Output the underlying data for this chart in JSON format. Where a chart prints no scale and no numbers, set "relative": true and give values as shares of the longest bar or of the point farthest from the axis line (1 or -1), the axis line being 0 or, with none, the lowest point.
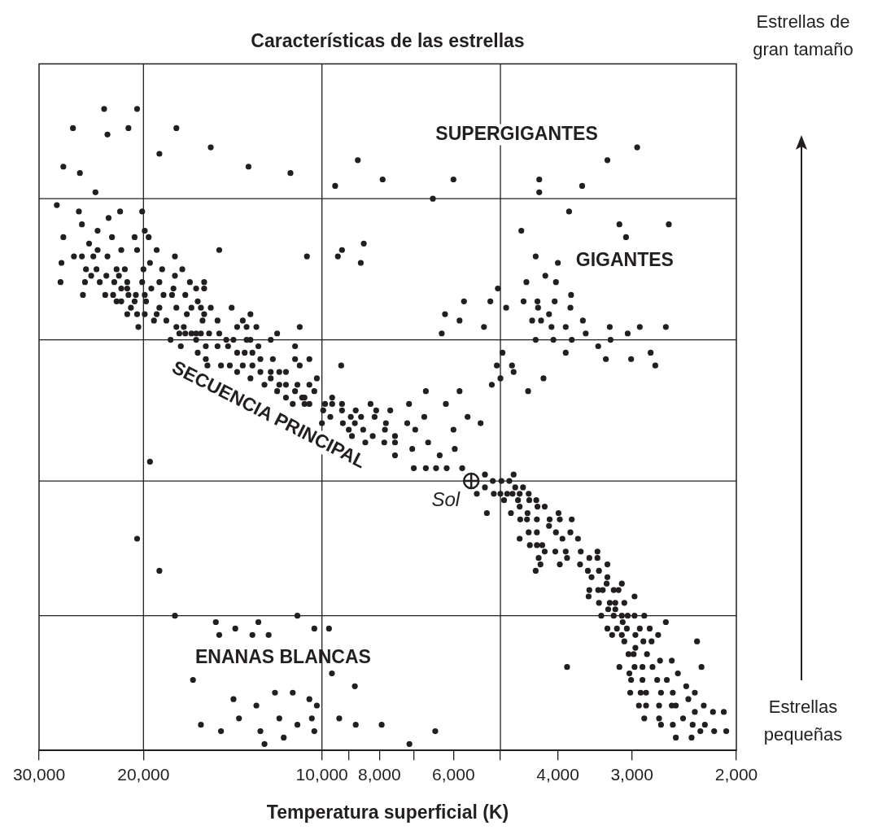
{
  "chart_data": {
    "type": "scatter",
    "title": "Características de las estrellas",
    "xlabel": "Temperatura superficial (K)",
    "relative": true,
    "log": "x",
    "marker": "circle",
    "xlim": [
      30000,
      2000
    ],
    "xticks": [
      {
        "value": 30000,
        "label": "30,000"
      },
      {
        "value": 20000,
        "label": "20,000"
      },
      {
        "value": 10000,
        "label": "10,000"
      },
      {
        "value": 9000,
        "label": null
      },
      {
        "value": 8000,
        "label": "8,000"
      },
      {
        "value": 7000,
        "label": null
      },
      {
        "value": 6000,
        "label": "6,000"
      },
      {
        "value": 5000,
        "label": null
      },
      {
        "value": 4000,
        "label": "4,000"
      },
      {
        "value": 3000,
        "label": "3,000"
      },
      {
        "value": 2000,
        "label": "2,000"
      }
    ],
    "ref_lines": [
      {
        "axis": "y",
        "value": 0.86,
        "color": "#231f20"
      },
      {
        "axis": "y",
        "value": 0.64,
        "color": "#231f20"
      },
      {
        "axis": "y",
        "value": 0.42,
        "color": "#231f20"
      },
      {
        "axis": "y",
        "value": 0.21,
        "color": "#231f20"
      },
      {
        "axis": "x",
        "value": 20000,
        "color": "#231f20"
      },
      {
        "axis": "x",
        "value": 10000,
        "color": "#231f20"
      },
      {
        "axis": "x",
        "value": 5000,
        "color": "#231f20"
      }
    ],
    "annotations": [
      "SUPERGIGANTES",
      "GIGANTES",
      "SECUENCIA PRINCIPAL",
      "ENANAS BLANCAS",
      "Estrellas de gran tamaño",
      "Estrellas pequeñas"
    ],
    "series": [
      {
        "color": "#231f20",
        "x": [
          23300,
          20500,
          26300,
          23000,
          21200,
          27300,
          25600,
          24100,
          17600,
          18800,
          15400,
          13300,
          11300,
          9500,
          8700,
          7900,
          6000,
          6500,
          4300,
          4300,
          3640,
          3300,
          2940,
          3830,
          3150,
          3070,
          2600,
          4610,
          4360,
          4000,
          4200,
          4030,
          4520,
          5050,
          5760,
          5200,
          4890,
          4570,
          4330,
          4050,
          3800,
          6200,
          5860,
          5330,
          6280,
          4320,
          4140,
          3810,
          4420,
          4270,
          4100,
          3880,
          3630,
          3270,
          2910,
          2630,
          3590,
          3260,
          3050,
          4360,
          4070,
          3790,
          3880,
          3420,
          3320,
          3010,
          2790,
          2740,
          4960,
          5070,
          5000,
          4780,
          4750,
          5170,
          4490,
          4230,
          6680,
          5860,
          7130,
          6180,
          6720,
          5680,
          5400,
          6000,
          5970,
          6620,
          6330,
          7040,
          6960,
          7180,
          7000,
          6680,
          6420,
          6160,
          5800,
          5310,
          4750,
          5480,
          5310,
          5270,
          5150,
          5130,
          5000,
          4980,
          4830,
          4720,
          4580,
          4870,
          4770,
          4640,
          4480,
          4930,
          4800,
          4670,
          4640,
          4470,
          4350,
          4330,
          4210,
          4500,
          4630,
          4510,
          4340,
          4130,
          3990,
          3970,
          3790,
          4480,
          4340,
          4140,
          4030,
          3810,
          3700,
          4640,
          4460,
          4250,
          3930,
          4340,
          4210,
          4040,
          3880,
          3660,
          3430,
          4310,
          3970,
          3860,
          4280,
          4360,
          3670,
          3540,
          3430,
          3300,
          3560,
          3410,
          3300,
          3510,
          3120,
          3540,
          3420,
          3310,
          3360,
          3220,
          3160,
          3550,
          3270,
          3200,
          3090,
          2970,
          3410,
          3200,
          3290,
          3050,
          3380,
          3220,
          3120,
          2970,
          2860,
          3300,
          3180,
          3110,
          3060,
          2910,
          2800,
          2630,
          3240,
          3120,
          2960,
          2710,
          3090,
          2960,
          2870,
          2780,
          2330,
          3040,
          2980,
          2830,
          3860,
          3150,
          2970,
          2770,
          2690,
          2570,
          2290,
          3030,
          2880,
          3010,
          2880,
          2720,
          2620,
          2510,
          3020,
          2900,
          2840,
          2680,
          2560,
          2430,
          2350,
          2410,
          2920,
          2840,
          2700,
          2570,
          2530,
          2270,
          2350,
          2860,
          2700,
          2460,
          2190,
          2100,
          2680,
          2560,
          2370,
          2260,
          2180,
          2080,
          2530,
          2380,
          2300,
          6440,
          7120,
          28000,
          25700,
          25400,
          27300,
          27500,
          27600,
          26200,
          24700,
          23900,
          22900,
          21900,
          20100,
          25400,
          24300,
          23900,
          22600,
          20700,
          19900,
          19600,
          25300,
          25100,
          25000,
          24000,
          24500,
          23700,
          23000,
          23100,
          22400,
          22200,
          21800,
          21500,
          22000,
          21300,
          23200,
          22500,
          22200,
          21800,
          21300,
          21800,
          21200,
          20600,
          20700,
          21000,
          21300,
          20500,
          20400,
          20500,
          20000,
          20100,
          19900,
          19800,
          19900,
          19000,
          19500,
          19400,
          18800,
          18600,
          18500,
          18800,
          19000,
          19200,
          18300,
          17700,
          17700,
          17200,
          17800,
          17900,
          17600,
          17600,
          17100,
          17000,
          16900,
          16700,
          16300,
          15800,
          15800,
          16200,
          16600,
          16000,
          15800,
          15900,
          15400,
          15000,
          16300,
          16600,
          17000,
          17400,
          18000,
          17300,
          16300,
          16000,
          15500,
          14900,
          14200,
          13900,
          13600,
          13400,
          13200,
          12900,
          13200,
          13400,
          14100,
          14500,
          12200,
          11900,
          10900,
          11100,
          14900,
          10600,
          9250,
          8500,
          9400,
          8600,
          15700,
          15000,
          14400,
          16200,
          15700,
          15600,
          14800,
          14300,
          13900,
          13500,
          13100,
          12800,
          12700,
          12100,
          11100,
          10500,
          13900,
          13600,
          13100,
          13200,
          12700,
          12200,
          11800,
          11500,
          10900,
          10200,
          12500,
          12200,
          11800,
          11500,
          11000,
          10500,
          11900,
          11500,
          11100,
          10800,
          11200,
          10700,
          10500,
          10300,
          10700,
          9280,
          9880,
          9610,
          9250,
          9610,
          9950,
          9680,
          9250,
          8770,
          8280,
          8100,
          7670,
          8940,
          8590,
          8150,
          10000,
          9220,
          8800,
          7800,
          9010,
          8520,
          8210,
          7830,
          8900,
          8450,
          7850,
          7530,
          7530,
          7530,
          19500,
          20500,
          18800,
          17700,
          15100,
          12800,
          11000,
          14000,
          13100,
          14900,
          12300,
          10300,
          9730,
          9620,
          8800,
          16500,
          14100,
          12000,
          11200,
          10500,
          10200,
          12900,
          13800,
          11800,
          11000,
          10400,
          9350,
          8770,
          7930,
          16000,
          14800,
          12700,
          11600,
          10300,
          12500
        ],
        "values": [
          1.0,
          1.0,
          0.97,
          0.96,
          0.97,
          0.91,
          0.9,
          0.87,
          0.97,
          0.93,
          0.94,
          0.91,
          0.9,
          0.88,
          0.92,
          0.89,
          0.89,
          0.86,
          0.89,
          0.87,
          0.88,
          0.92,
          0.94,
          0.84,
          0.82,
          0.8,
          0.82,
          0.81,
          0.77,
          0.76,
          0.74,
          0.73,
          0.73,
          0.72,
          0.7,
          0.7,
          0.69,
          0.7,
          0.7,
          0.7,
          0.71,
          0.68,
          0.67,
          0.66,
          0.65,
          0.69,
          0.68,
          0.69,
          0.67,
          0.67,
          0.66,
          0.66,
          0.67,
          0.66,
          0.66,
          0.66,
          0.65,
          0.64,
          0.65,
          0.64,
          0.64,
          0.64,
          0.62,
          0.63,
          0.61,
          0.61,
          0.62,
          0.6,
          0.62,
          0.6,
          0.58,
          0.6,
          0.59,
          0.57,
          0.56,
          0.58,
          0.56,
          0.56,
          0.54,
          0.54,
          0.52,
          0.52,
          0.51,
          0.5,
          0.47,
          0.48,
          0.46,
          0.47,
          0.5,
          0.51,
          0.44,
          0.44,
          0.44,
          0.44,
          0.44,
          0.43,
          0.43,
          0.4,
          0.41,
          0.37,
          0.42,
          0.4,
          0.4,
          0.42,
          0.42,
          0.41,
          0.41,
          0.4,
          0.4,
          0.4,
          0.4,
          0.39,
          0.37,
          0.39,
          0.38,
          0.39,
          0.39,
          0.38,
          0.38,
          0.37,
          0.36,
          0.36,
          0.36,
          0.36,
          0.37,
          0.36,
          0.36,
          0.34,
          0.34,
          0.35,
          0.34,
          0.34,
          0.33,
          0.33,
          0.32,
          0.32,
          0.33,
          0.32,
          0.31,
          0.31,
          0.31,
          0.31,
          0.31,
          0.3,
          0.29,
          0.3,
          0.29,
          0.28,
          0.29,
          0.3,
          0.3,
          0.29,
          0.28,
          0.28,
          0.27,
          0.27,
          0.26,
          0.25,
          0.25,
          0.26,
          0.25,
          0.25,
          0.25,
          0.24,
          0.23,
          0.23,
          0.23,
          0.24,
          0.23,
          0.22,
          0.22,
          0.21,
          0.21,
          0.21,
          0.21,
          0.21,
          0.21,
          0.19,
          0.19,
          0.2,
          0.19,
          0.19,
          0.19,
          0.2,
          0.18,
          0.18,
          0.18,
          0.18,
          0.17,
          0.16,
          0.17,
          0.17,
          0.17,
          0.15,
          0.15,
          0.15,
          0.13,
          0.13,
          0.13,
          0.13,
          0.14,
          0.14,
          0.13,
          0.12,
          0.13,
          0.11,
          0.11,
          0.11,
          0.11,
          0.12,
          0.09,
          0.09,
          0.09,
          0.09,
          0.09,
          0.1,
          0.09,
          0.08,
          0.07,
          0.07,
          0.07,
          0.07,
          0.07,
          0.07,
          0.06,
          0.05,
          0.05,
          0.05,
          0.06,
          0.06,
          0.04,
          0.04,
          0.04,
          0.04,
          0.03,
          0.03,
          0.02,
          0.02,
          0.03,
          0.03,
          0.01,
          0.85,
          0.84,
          0.82,
          0.8,
          0.76,
          0.73,
          0.77,
          0.79,
          0.81,
          0.83,
          0.84,
          0.84,
          0.77,
          0.77,
          0.78,
          0.8,
          0.8,
          0.81,
          0.8,
          0.71,
          0.73,
          0.75,
          0.75,
          0.74,
          0.73,
          0.77,
          0.74,
          0.73,
          0.75,
          0.78,
          0.75,
          0.74,
          0.73,
          0.71,
          0.71,
          0.7,
          0.72,
          0.72,
          0.7,
          0.71,
          0.71,
          0.7,
          0.69,
          0.68,
          0.68,
          0.66,
          0.78,
          0.75,
          0.73,
          0.71,
          0.7,
          0.68,
          0.78,
          0.76,
          0.72,
          0.73,
          0.75,
          0.71,
          0.69,
          0.68,
          0.67,
          0.67,
          0.77,
          0.74,
          0.75,
          0.72,
          0.71,
          0.69,
          0.66,
          0.66,
          0.71,
          0.68,
          0.73,
          0.72,
          0.73,
          0.72,
          0.7,
          0.69,
          0.69,
          0.68,
          0.67,
          0.69,
          0.67,
          0.65,
          0.65,
          0.65,
          0.65,
          0.64,
          0.63,
          0.64,
          0.65,
          0.65,
          0.65,
          0.69,
          0.66,
          0.67,
          0.66,
          0.68,
          0.66,
          0.64,
          0.64,
          0.64,
          0.64,
          0.64,
          0.65,
          0.66,
          0.63,
          0.78,
          0.77,
          0.78,
          0.79,
          0.77,
          0.76,
          0.63,
          0.63,
          0.63,
          0.62,
          0.61,
          0.6,
          0.6,
          0.6,
          0.62,
          0.62,
          0.62,
          0.63,
          0.61,
          0.61,
          0.61,
          0.61,
          0.59,
          0.6,
          0.6,
          0.58,
          0.59,
          0.59,
          0.59,
          0.59,
          0.6,
          0.58,
          0.57,
          0.58,
          0.57,
          0.57,
          0.57,
          0.57,
          0.56,
          0.55,
          0.56,
          0.55,
          0.54,
          0.54,
          0.54,
          0.56,
          0.55,
          0.6,
          0.54,
          0.55,
          0.54,
          0.54,
          0.53,
          0.52,
          0.53,
          0.53,
          0.54,
          0.53,
          0.53,
          0.52,
          0.52,
          0.52,
          0.51,
          0.51,
          0.51,
          0.51,
          0.5,
          0.5,
          0.49,
          0.5,
          0.49,
          0.48,
          0.48,
          0.49,
          0.48,
          0.46,
          0.45,
          0.33,
          0.28,
          0.21,
          0.2,
          0.2,
          0.21,
          0.19,
          0.18,
          0.18,
          0.18,
          0.19,
          0.19,
          0.12,
          0.1,
          0.11,
          0.08,
          0.09,
          0.09,
          0.08,
          0.07,
          0.07,
          0.05,
          0.05,
          0.04,
          0.05,
          0.05,
          0.04,
          0.04,
          0.04,
          0.03,
          0.03,
          0.02,
          0.03,
          0.01
        ]
      },
      {
        "name": "Sol",
        "color": "#231f20",
        "marker": "circle",
        "x": [
          5600
        ],
        "values": [
          0.42
        ]
      }
    ]
  }
}
